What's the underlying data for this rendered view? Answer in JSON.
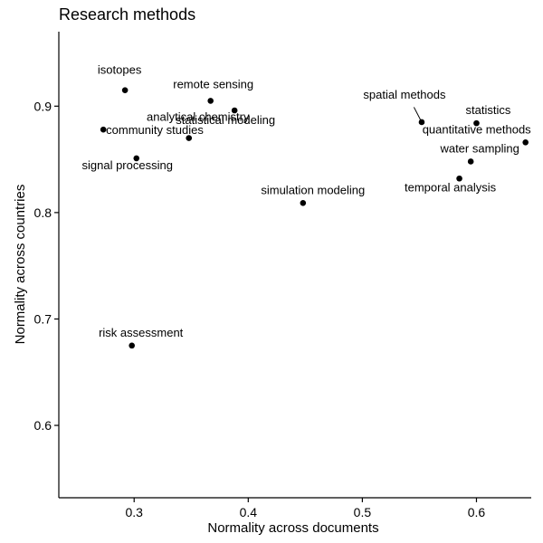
{
  "chart_data": {
    "type": "scatter",
    "title": "Research methods",
    "xlabel": "Normality across documents",
    "ylabel": "Normality across countries",
    "xlim": [
      0.234,
      0.648
    ],
    "ylim": [
      0.532,
      0.97
    ],
    "xticks": [
      0.3,
      0.4,
      0.5,
      0.6
    ],
    "xtick_labels": [
      "0.3",
      "0.4",
      "0.5",
      "0.6"
    ],
    "yticks": [
      0.6,
      0.7,
      0.8,
      0.9
    ],
    "ytick_labels": [
      "0.6",
      "0.7",
      "0.8",
      "0.9"
    ],
    "grid": false,
    "axes": "left-bottom",
    "points": [
      {
        "label": "isotopes",
        "x": 0.292,
        "y": 0.915
      },
      {
        "label": "remote sensing",
        "x": 0.367,
        "y": 0.905
      },
      {
        "label": "statistical modeling",
        "x": 0.388,
        "y": 0.896
      },
      {
        "label": "community studies",
        "x": 0.273,
        "y": 0.878
      },
      {
        "label": "analytical chemistry",
        "x": 0.348,
        "y": 0.87
      },
      {
        "label": "signal processing",
        "x": 0.302,
        "y": 0.851
      },
      {
        "label": "simulation modeling",
        "x": 0.448,
        "y": 0.809
      },
      {
        "label": "spatial methods",
        "x": 0.552,
        "y": 0.885
      },
      {
        "label": "statistics",
        "x": 0.6,
        "y": 0.884
      },
      {
        "label": "quantitative methods",
        "x": 0.643,
        "y": 0.866
      },
      {
        "label": "water sampling",
        "x": 0.595,
        "y": 0.848
      },
      {
        "label": "temporal analysis",
        "x": 0.585,
        "y": 0.832
      },
      {
        "label": "risk assessment",
        "x": 0.298,
        "y": 0.675
      }
    ]
  }
}
